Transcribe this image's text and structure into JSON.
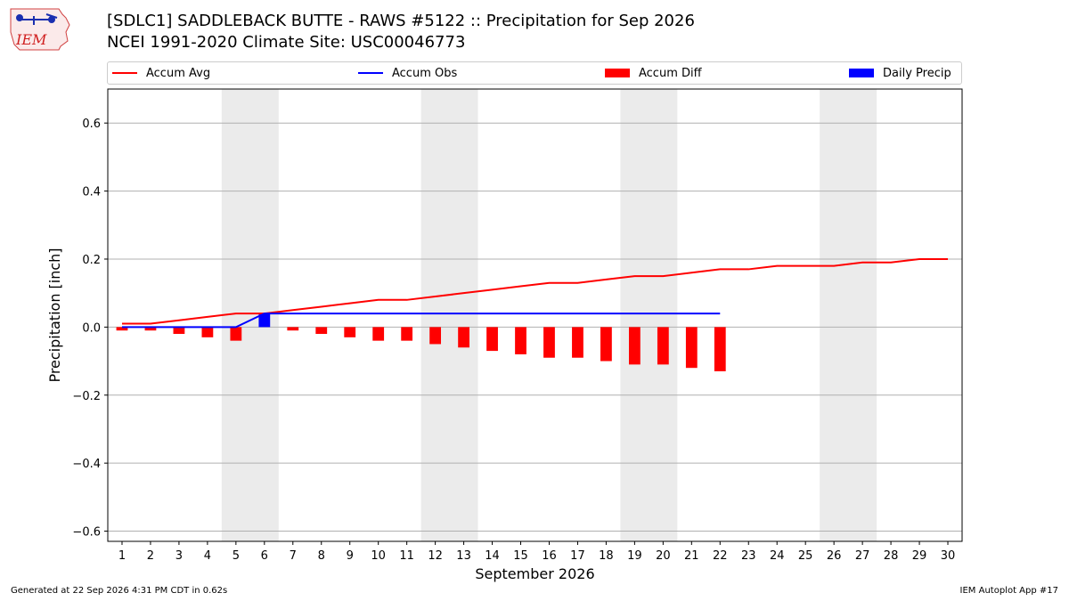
{
  "logo": {
    "text": "IEM"
  },
  "header": {
    "title_line1": "[SDLC1] SADDLEBACK BUTTE - RAWS #5122 :: Precipitation for Sep 2026",
    "title_line2": "NCEI 1991-2020 Climate Site: USC00046773"
  },
  "legend": {
    "items": [
      {
        "label": "Accum Avg",
        "color": "#ff0000",
        "kind": "line"
      },
      {
        "label": "Accum Obs",
        "color": "#0000ff",
        "kind": "line"
      },
      {
        "label": "Accum Diff",
        "color": "#ff0000",
        "kind": "box"
      },
      {
        "label": "Daily Precip",
        "color": "#0000ff",
        "kind": "box"
      }
    ]
  },
  "footer": {
    "generated": "Generated at 22 Sep 2026 4:31 PM CDT in 0.62s",
    "app": "IEM Autoplot App #17"
  },
  "chart_data": {
    "type": "bar",
    "xlabel": "September 2026",
    "ylabel": "Precipitation [inch]",
    "xlim": [
      0.5,
      30.5
    ],
    "ylim": [
      -0.63,
      0.7
    ],
    "yticks": [
      -0.6,
      -0.4,
      -0.2,
      0.0,
      0.2,
      0.4,
      0.6
    ],
    "ytick_labels": [
      "−0.6",
      "−0.4",
      "−0.2",
      "0.0",
      "0.2",
      "0.4",
      "0.6"
    ],
    "days": [
      1,
      2,
      3,
      4,
      5,
      6,
      7,
      8,
      9,
      10,
      11,
      12,
      13,
      14,
      15,
      16,
      17,
      18,
      19,
      20,
      21,
      22,
      23,
      24,
      25,
      26,
      27,
      28,
      29,
      30
    ],
    "weekend_shading": [
      [
        4.5,
        6.5
      ],
      [
        11.5,
        13.5
      ],
      [
        18.5,
        20.5
      ],
      [
        25.5,
        27.5
      ]
    ],
    "grid": true,
    "series": [
      {
        "name": "Accum Avg",
        "kind": "line",
        "color": "#ff0000",
        "x": [
          1,
          2,
          3,
          4,
          5,
          6,
          7,
          8,
          9,
          10,
          11,
          12,
          13,
          14,
          15,
          16,
          17,
          18,
          19,
          20,
          21,
          22,
          23,
          24,
          25,
          26,
          27,
          28,
          29,
          30
        ],
        "values": [
          0.01,
          0.01,
          0.02,
          0.03,
          0.04,
          0.04,
          0.05,
          0.06,
          0.07,
          0.08,
          0.08,
          0.09,
          0.1,
          0.11,
          0.12,
          0.13,
          0.13,
          0.14,
          0.15,
          0.15,
          0.16,
          0.17,
          0.17,
          0.18,
          0.18,
          0.18,
          0.19,
          0.19,
          0.2,
          0.2
        ]
      },
      {
        "name": "Accum Obs",
        "kind": "line",
        "color": "#0000ff",
        "x": [
          1,
          2,
          3,
          4,
          5,
          6,
          7,
          8,
          9,
          10,
          11,
          12,
          13,
          14,
          15,
          16,
          17,
          18,
          19,
          20,
          21,
          22
        ],
        "values": [
          0,
          0,
          0,
          0,
          0,
          0.04,
          0.04,
          0.04,
          0.04,
          0.04,
          0.04,
          0.04,
          0.04,
          0.04,
          0.04,
          0.04,
          0.04,
          0.04,
          0.04,
          0.04,
          0.04,
          0.04
        ]
      },
      {
        "name": "Accum Diff",
        "kind": "bar",
        "color": "#ff0000",
        "x": [
          1,
          2,
          3,
          4,
          5,
          6,
          7,
          8,
          9,
          10,
          11,
          12,
          13,
          14,
          15,
          16,
          17,
          18,
          19,
          20,
          21,
          22
        ],
        "values": [
          -0.01,
          -0.01,
          -0.02,
          -0.03,
          -0.04,
          0.0,
          -0.01,
          -0.02,
          -0.03,
          -0.04,
          -0.04,
          -0.05,
          -0.06,
          -0.07,
          -0.08,
          -0.09,
          -0.09,
          -0.1,
          -0.11,
          -0.11,
          -0.12,
          -0.13
        ]
      },
      {
        "name": "Daily Precip",
        "kind": "bar",
        "color": "#0000ff",
        "x": [
          6
        ],
        "values": [
          0.04
        ]
      }
    ]
  }
}
